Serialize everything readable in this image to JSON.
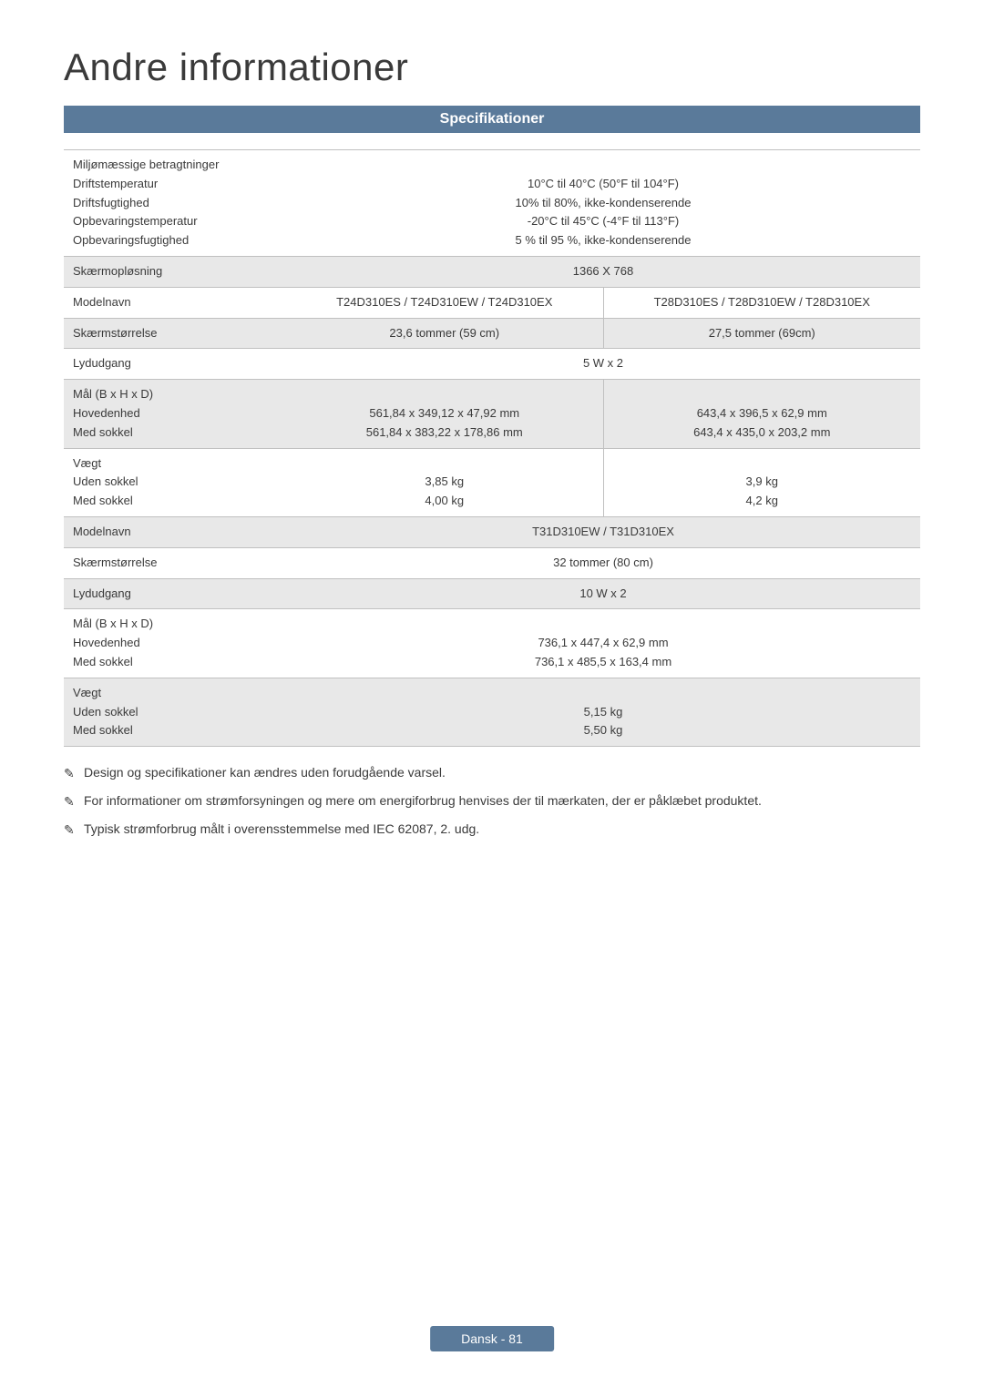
{
  "title": "Andre informationer",
  "section_header": "Specifikationer",
  "rows": [
    {
      "labels": [
        "Miljømæssige betragtninger",
        "Driftstemperatur",
        "Driftsfugtighed",
        "Opbevaringstemperatur",
        "Opbevaringsfugtighed"
      ],
      "values": [
        "",
        "10°C til 40°C (50°F til 104°F)",
        "10% til 80%, ikke-kondenserende",
        "-20°C til 45°C (-4°F til 113°F)",
        "5 % til 95 %, ikke-kondenserende"
      ],
      "shaded": false,
      "split": false
    },
    {
      "labels": [
        "Skærmopløsning"
      ],
      "values": [
        "1366 X 768"
      ],
      "shaded": true,
      "split": false
    },
    {
      "labels": [
        "Modelnavn"
      ],
      "left": "T24D310ES / T24D310EW / T24D310EX",
      "right": "T28D310ES / T28D310EW / T28D310EX",
      "shaded": false,
      "split": true
    },
    {
      "labels": [
        "Skærmstørrelse"
      ],
      "left": "23,6 tommer (59 cm)",
      "right": "27,5 tommer (69cm)",
      "shaded": true,
      "split": true
    },
    {
      "labels": [
        "Lydudgang"
      ],
      "values": [
        "5 W x 2"
      ],
      "shaded": false,
      "split": false
    },
    {
      "labels": [
        "Mål (B x H x D)",
        "Hovedenhed",
        "Med sokkel"
      ],
      "left_lines": [
        "",
        "561,84 x 349,12 x 47,92 mm",
        "561,84 x 383,22 x 178,86 mm"
      ],
      "right_lines": [
        "",
        "643,4 x 396,5 x 62,9 mm",
        "643,4 x 435,0 x 203,2 mm"
      ],
      "shaded": true,
      "split": true
    },
    {
      "labels": [
        "Vægt",
        "Uden sokkel",
        "Med sokkel"
      ],
      "left_lines": [
        "",
        "3,85 kg",
        "4,00 kg"
      ],
      "right_lines": [
        "",
        "3,9 kg",
        "4,2 kg"
      ],
      "shaded": false,
      "split": true
    },
    {
      "labels": [
        "Modelnavn"
      ],
      "values": [
        "T31D310EW / T31D310EX"
      ],
      "shaded": true,
      "split": false
    },
    {
      "labels": [
        "Skærmstørrelse"
      ],
      "values": [
        "32 tommer (80 cm)"
      ],
      "shaded": false,
      "split": false
    },
    {
      "labels": [
        "Lydudgang"
      ],
      "values": [
        "10 W x 2"
      ],
      "shaded": true,
      "split": false
    },
    {
      "labels": [
        "Mål (B x H x D)",
        "Hovedenhed",
        "Med sokkel"
      ],
      "values": [
        "",
        "736,1 x 447,4 x 62,9 mm",
        "736,1 x 485,5 x 163,4 mm"
      ],
      "shaded": false,
      "split": false
    },
    {
      "labels": [
        "Vægt",
        "Uden sokkel",
        "Med sokkel"
      ],
      "values": [
        "",
        "5,15 kg",
        "5,50 kg"
      ],
      "shaded": true,
      "split": false
    }
  ],
  "notes": [
    "Design og specifikationer kan ændres uden forudgående varsel.",
    "For informationer om strømforsyningen og mere om energiforbrug henvises der til mærkaten, der er påklæbet produktet.",
    "Typisk strømforbrug målt i overensstemmelse med IEC 62087, 2. udg."
  ],
  "note_icon": "✎",
  "footer": "Dansk - 81",
  "colors": {
    "header_bg": "#5a7a9a",
    "header_text": "#ffffff",
    "shaded_bg": "#e8e8e8",
    "border": "#c0c0c0",
    "text": "#3a3a3a"
  }
}
